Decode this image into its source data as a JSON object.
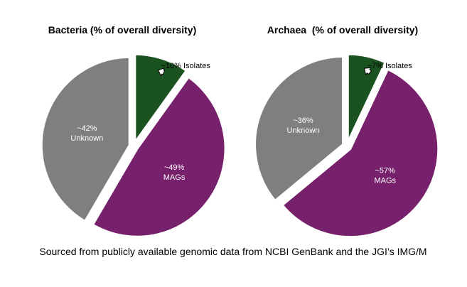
{
  "chart_data": [
    {
      "type": "pie",
      "title": "Bacteria (% of overall diversity)",
      "slices": [
        {
          "name": "Isolates",
          "value": 10,
          "label": "~10% Isolates",
          "color": "#1a5320"
        },
        {
          "name": "MAGs",
          "value": 49,
          "label_lines": [
            "~49%",
            "MAGs"
          ],
          "color": "#77206b"
        },
        {
          "name": "Unknown",
          "value": 42,
          "label_lines": [
            "~42%",
            "Unknown"
          ],
          "color": "#7f7f7f"
        }
      ]
    },
    {
      "type": "pie",
      "title": "Archaea  (% of overall diversity)",
      "slices": [
        {
          "name": "Isolates",
          "value": 7,
          "label": "~7% Isolates",
          "color": "#1a5320"
        },
        {
          "name": "MAGs",
          "value": 57,
          "label_lines": [
            "~57%",
            "MAGs"
          ],
          "color": "#77206b"
        },
        {
          "name": "Unknown",
          "value": 36,
          "label_lines": [
            "~36%",
            "Unknown"
          ],
          "color": "#7f7f7f"
        }
      ]
    }
  ],
  "footer": {
    "source_text": "Sourced from publicly available genomic data from NCBI GenBank and the JGI’s IMG/M"
  }
}
